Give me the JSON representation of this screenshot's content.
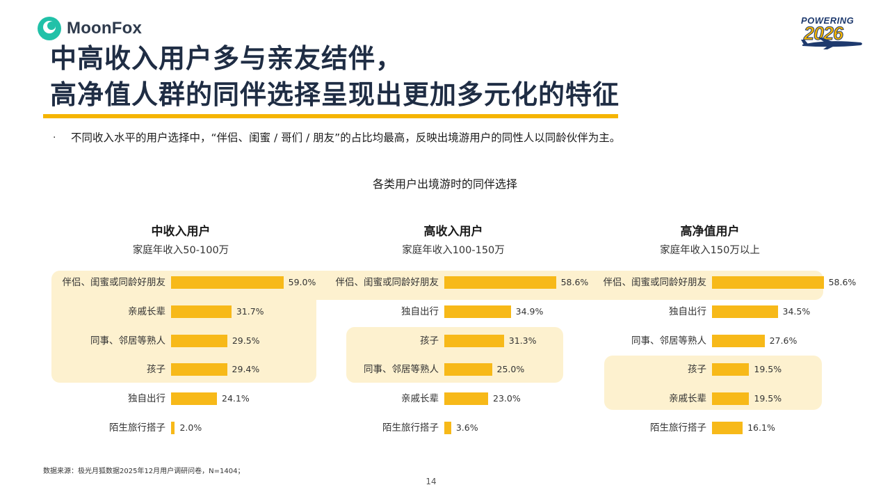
{
  "brand": {
    "logo_text": "MoonFox",
    "badge_top": "POWERING",
    "badge_year": "2026"
  },
  "title": {
    "line1": "中高收入用户多与亲友结伴，",
    "line2": "高净值人群的同伴选择呈现出更加多元化的特征"
  },
  "bullet": {
    "marker": "·",
    "text": "不同收入水平的用户选择中，“伴侣、闺蜜 / 哥们 / 朋友”的占比均最高，反映出境游用户的同性人以同龄伙伴为主。"
  },
  "footer": {
    "source": "数据来源：极光月狐数据2025年12月用户调研问卷，N=1404；",
    "page_number": "14"
  },
  "colors": {
    "bar": "#f7b919",
    "highlight": "#fdf1cf",
    "title": "#1f2d44",
    "accent": "#f5b400",
    "logo_mark": "#21c1a8"
  },
  "chart_data": {
    "type": "bar",
    "title": "各类用户出境游时的同伴选择",
    "orientation": "horizontal",
    "unit": "%",
    "xlim": [
      0,
      60
    ],
    "panels": [
      {
        "name": "中收入用户",
        "subtitle": "家庭年收入50-100万",
        "categories": [
          "伴侣、闺蜜或同龄好朋友",
          "亲戚长辈",
          "同事、邻居等熟人",
          "孩子",
          "独自出行",
          "陌生旅行搭子"
        ],
        "values": [
          59.0,
          31.7,
          29.5,
          29.4,
          24.1,
          2.0
        ],
        "labels": [
          "59.0%",
          "31.7%",
          "29.5%",
          "29.4%",
          "24.1%",
          "2.0%"
        ]
      },
      {
        "name": "高收入用户",
        "subtitle": "家庭年收入100-150万",
        "categories": [
          "伴侣、闺蜜或同龄好朋友",
          "独自出行",
          "孩子",
          "同事、邻居等熟人",
          "亲戚长辈",
          "陌生旅行搭子"
        ],
        "values": [
          58.6,
          34.9,
          31.3,
          25.0,
          23.0,
          3.6
        ],
        "labels": [
          "58.6%",
          "34.9%",
          "31.3%",
          "25.0%",
          "23.0%",
          "3.6%"
        ]
      },
      {
        "name": "高净值用户",
        "subtitle": "家庭年收入150万以上",
        "categories": [
          "伴侣、闺蜜或同龄好朋友",
          "独自出行",
          "同事、邻居等熟人",
          "孩子",
          "亲戚长辈",
          "陌生旅行搭子"
        ],
        "values": [
          58.6,
          34.5,
          27.6,
          19.5,
          19.5,
          16.1
        ],
        "labels": [
          "58.6%",
          "34.5%",
          "27.6%",
          "19.5%",
          "19.5%",
          "16.1%"
        ]
      }
    ]
  }
}
